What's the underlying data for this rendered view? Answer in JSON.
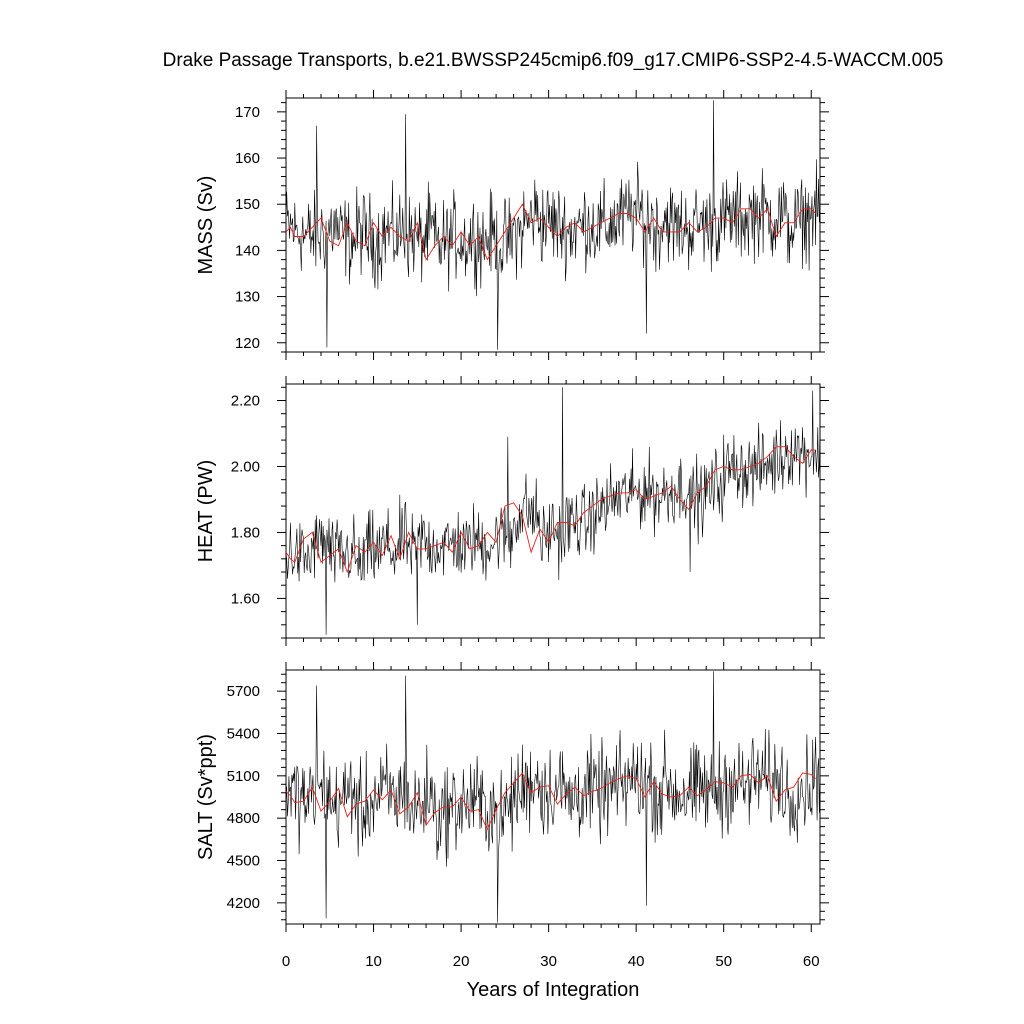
{
  "chart_data": {
    "title": "Drake Passage Transports, b.e21.BWSSP245cmip6.f09_g17.CMIP6-SSP2-4.5-WACCM.005",
    "xlabel": "Years of Integration",
    "type": "line",
    "colors": {
      "raw": "#000000",
      "smoothed": "#e8231c"
    },
    "x_range": [
      0,
      61
    ],
    "x_ticks": [
      0,
      10,
      20,
      30,
      40,
      50,
      60
    ],
    "panels": [
      {
        "key": "mass",
        "ylabel": "MASS (Sv)",
        "ylim": [
          118,
          173
        ],
        "y_ticks": [
          120,
          130,
          140,
          150,
          160,
          170
        ],
        "y_tick_labels": [
          "120",
          "130",
          "140",
          "150",
          "160",
          "170"
        ],
        "smoothed": {
          "x": [
            0,
            0.5,
            1,
            2,
            3,
            4,
            5,
            6,
            7,
            8,
            9,
            10,
            11,
            12,
            13,
            14,
            15,
            16,
            17,
            18,
            19,
            20,
            21,
            22,
            23,
            24,
            25,
            26,
            27,
            28,
            29,
            30,
            31,
            32,
            33,
            34,
            35,
            36,
            37,
            38,
            39,
            40,
            41,
            42,
            43,
            44,
            45,
            46,
            47,
            48,
            49,
            50,
            51,
            52,
            53,
            54,
            55,
            56,
            57,
            58,
            59,
            60,
            60.5
          ],
          "y": [
            144,
            145,
            143,
            143,
            145,
            147,
            142,
            141,
            146,
            142,
            141,
            146,
            143,
            145,
            143,
            142,
            146,
            138,
            141,
            143,
            141,
            144,
            141,
            143,
            138,
            141,
            144,
            147,
            150,
            146,
            147,
            145,
            143,
            145,
            146,
            144,
            145,
            146,
            147,
            148,
            148,
            147,
            144,
            147,
            144,
            144,
            144,
            146,
            144,
            145,
            147,
            147,
            146,
            149,
            149,
            147,
            149,
            143,
            146,
            146,
            149,
            149,
            148
          ],
          "series_color": "#e8231c"
        },
        "raw": {
          "samples_per_year": 12,
          "base": [
            145,
            144,
            143,
            143,
            144,
            145,
            143,
            142,
            144,
            143,
            142,
            144,
            143,
            144,
            143,
            142,
            144,
            141,
            142,
            143,
            142,
            143,
            142,
            143,
            141,
            142,
            144,
            146,
            148,
            146,
            146,
            145,
            144,
            145,
            146,
            145,
            145,
            146,
            147,
            148,
            148,
            147,
            145,
            147,
            145,
            145,
            145,
            146,
            145,
            146,
            147,
            147,
            147,
            148,
            148,
            147,
            148,
            145,
            146,
            147,
            148,
            148
          ],
          "amplitude": 8.5,
          "extremes": [
            {
              "x": 4.7,
              "y": 119
            },
            {
              "x": 24.2,
              "y": 118.5
            },
            {
              "x": 13.7,
              "y": 169.5
            },
            {
              "x": 48.8,
              "y": 172.5
            },
            {
              "x": 3.5,
              "y": 167
            },
            {
              "x": 41.2,
              "y": 122
            }
          ]
        }
      },
      {
        "key": "heat",
        "ylabel": "HEAT (PW)",
        "ylim": [
          1.48,
          2.25
        ],
        "y_ticks": [
          1.6,
          1.8,
          2.0,
          2.2
        ],
        "y_tick_labels": [
          "1.60",
          "1.80",
          "2.00",
          "2.20"
        ],
        "smoothed": {
          "x": [
            0,
            0.5,
            1,
            2,
            3,
            4,
            5,
            6,
            7,
            8,
            9,
            10,
            11,
            12,
            13,
            14,
            15,
            16,
            17,
            18,
            19,
            20,
            21,
            22,
            23,
            24,
            25,
            26,
            27,
            28,
            29,
            30,
            31,
            32,
            33,
            34,
            35,
            36,
            37,
            38,
            39,
            40,
            41,
            42,
            43,
            44,
            45,
            46,
            47,
            48,
            49,
            50,
            51,
            52,
            53,
            54,
            55,
            56,
            57,
            58,
            59,
            60,
            60.5
          ],
          "y": [
            1.74,
            1.72,
            1.71,
            1.78,
            1.8,
            1.71,
            1.73,
            1.75,
            1.68,
            1.76,
            1.74,
            1.77,
            1.73,
            1.79,
            1.72,
            1.8,
            1.75,
            1.75,
            1.76,
            1.77,
            1.74,
            1.8,
            1.75,
            1.76,
            1.8,
            1.77,
            1.88,
            1.89,
            1.85,
            1.74,
            1.81,
            1.77,
            1.83,
            1.83,
            1.82,
            1.86,
            1.88,
            1.9,
            1.91,
            1.92,
            1.92,
            1.93,
            1.9,
            1.91,
            1.92,
            1.94,
            1.9,
            1.87,
            1.92,
            1.94,
            1.99,
            2.0,
            1.99,
            1.99,
            2.0,
            2.01,
            2.03,
            2.06,
            2.06,
            2.03,
            2.01,
            2.05,
            2.05
          ],
          "series_color": "#e8231c"
        },
        "raw": {
          "samples_per_year": 12,
          "base": [
            1.74,
            1.73,
            1.72,
            1.76,
            1.78,
            1.73,
            1.73,
            1.74,
            1.7,
            1.75,
            1.74,
            1.76,
            1.74,
            1.78,
            1.74,
            1.78,
            1.76,
            1.76,
            1.76,
            1.77,
            1.75,
            1.78,
            1.76,
            1.77,
            1.79,
            1.78,
            1.85,
            1.87,
            1.85,
            1.78,
            1.81,
            1.79,
            1.83,
            1.83,
            1.83,
            1.86,
            1.88,
            1.9,
            1.91,
            1.92,
            1.92,
            1.93,
            1.91,
            1.92,
            1.93,
            1.94,
            1.92,
            1.9,
            1.93,
            1.95,
            1.99,
            2.0,
            1.99,
            1.99,
            2.0,
            2.01,
            2.03,
            2.05,
            2.05,
            2.04,
            2.03,
            2.05
          ],
          "amplitude": 0.1,
          "extremes": [
            {
              "x": 4.6,
              "y": 1.49
            },
            {
              "x": 31.6,
              "y": 2.24
            },
            {
              "x": 46.2,
              "y": 1.68
            },
            {
              "x": 60.2,
              "y": 2.23
            },
            {
              "x": 25.3,
              "y": 2.09
            },
            {
              "x": 15.0,
              "y": 1.52
            }
          ]
        }
      },
      {
        "key": "salt",
        "ylabel": "SALT (Sv*ppt)",
        "ylim": [
          4050,
          5850
        ],
        "y_ticks": [
          4200,
          4500,
          4800,
          5100,
          5400,
          5700
        ],
        "y_tick_labels": [
          "4200",
          "4500",
          "4800",
          "5100",
          "5400",
          "5700"
        ],
        "smoothed": {
          "x": [
            0,
            0.5,
            1,
            2,
            3,
            4,
            5,
            6,
            7,
            8,
            9,
            10,
            11,
            12,
            13,
            14,
            15,
            16,
            17,
            18,
            19,
            20,
            21,
            22,
            23,
            24,
            25,
            26,
            27,
            28,
            29,
            30,
            31,
            32,
            33,
            34,
            35,
            36,
            37,
            38,
            39,
            40,
            41,
            42,
            43,
            44,
            45,
            46,
            47,
            48,
            49,
            50,
            51,
            52,
            53,
            54,
            55,
            56,
            57,
            58,
            59,
            60,
            60.5
          ],
          "y": [
            4990,
            4960,
            4910,
            4920,
            5020,
            4850,
            4920,
            5010,
            4810,
            4900,
            4920,
            5000,
            4930,
            5000,
            4830,
            4880,
            4980,
            4750,
            4840,
            4880,
            4880,
            4950,
            4850,
            4860,
            4720,
            4860,
            4980,
            5050,
            5120,
            4980,
            5020,
            5030,
            4900,
            4970,
            5020,
            4960,
            4990,
            5010,
            5050,
            5080,
            5100,
            5080,
            4950,
            5060,
            4970,
            4950,
            4960,
            5020,
            4960,
            5000,
            5060,
            5050,
            5020,
            5100,
            5110,
            5050,
            5100,
            4920,
            5000,
            5020,
            5120,
            5110,
            5080
          ],
          "series_color": "#e8231c"
        },
        "raw": {
          "samples_per_year": 12,
          "base": [
            4990,
            4950,
            4920,
            4940,
            5010,
            4880,
            4930,
            5000,
            4840,
            4910,
            4930,
            4990,
            4940,
            4990,
            4860,
            4900,
            4970,
            4800,
            4860,
            4890,
            4890,
            4940,
            4870,
            4880,
            4780,
            4880,
            4970,
            5030,
            5090,
            4990,
            5010,
            5020,
            4930,
            4980,
            5010,
            4970,
            4990,
            5010,
            5040,
            5070,
            5080,
            5070,
            4970,
            5050,
            4980,
            4970,
            4980,
            5010,
            4970,
            5000,
            5050,
            5040,
            5030,
            5080,
            5090,
            5050,
            5080,
            4950,
            5010,
            5030,
            5100,
            5100
          ],
          "amplitude": 300,
          "extremes": [
            {
              "x": 4.6,
              "y": 4090
            },
            {
              "x": 24.2,
              "y": 4060
            },
            {
              "x": 13.7,
              "y": 5810
            },
            {
              "x": 48.8,
              "y": 5840
            },
            {
              "x": 3.5,
              "y": 5740
            },
            {
              "x": 41.2,
              "y": 4180
            }
          ]
        }
      }
    ]
  }
}
